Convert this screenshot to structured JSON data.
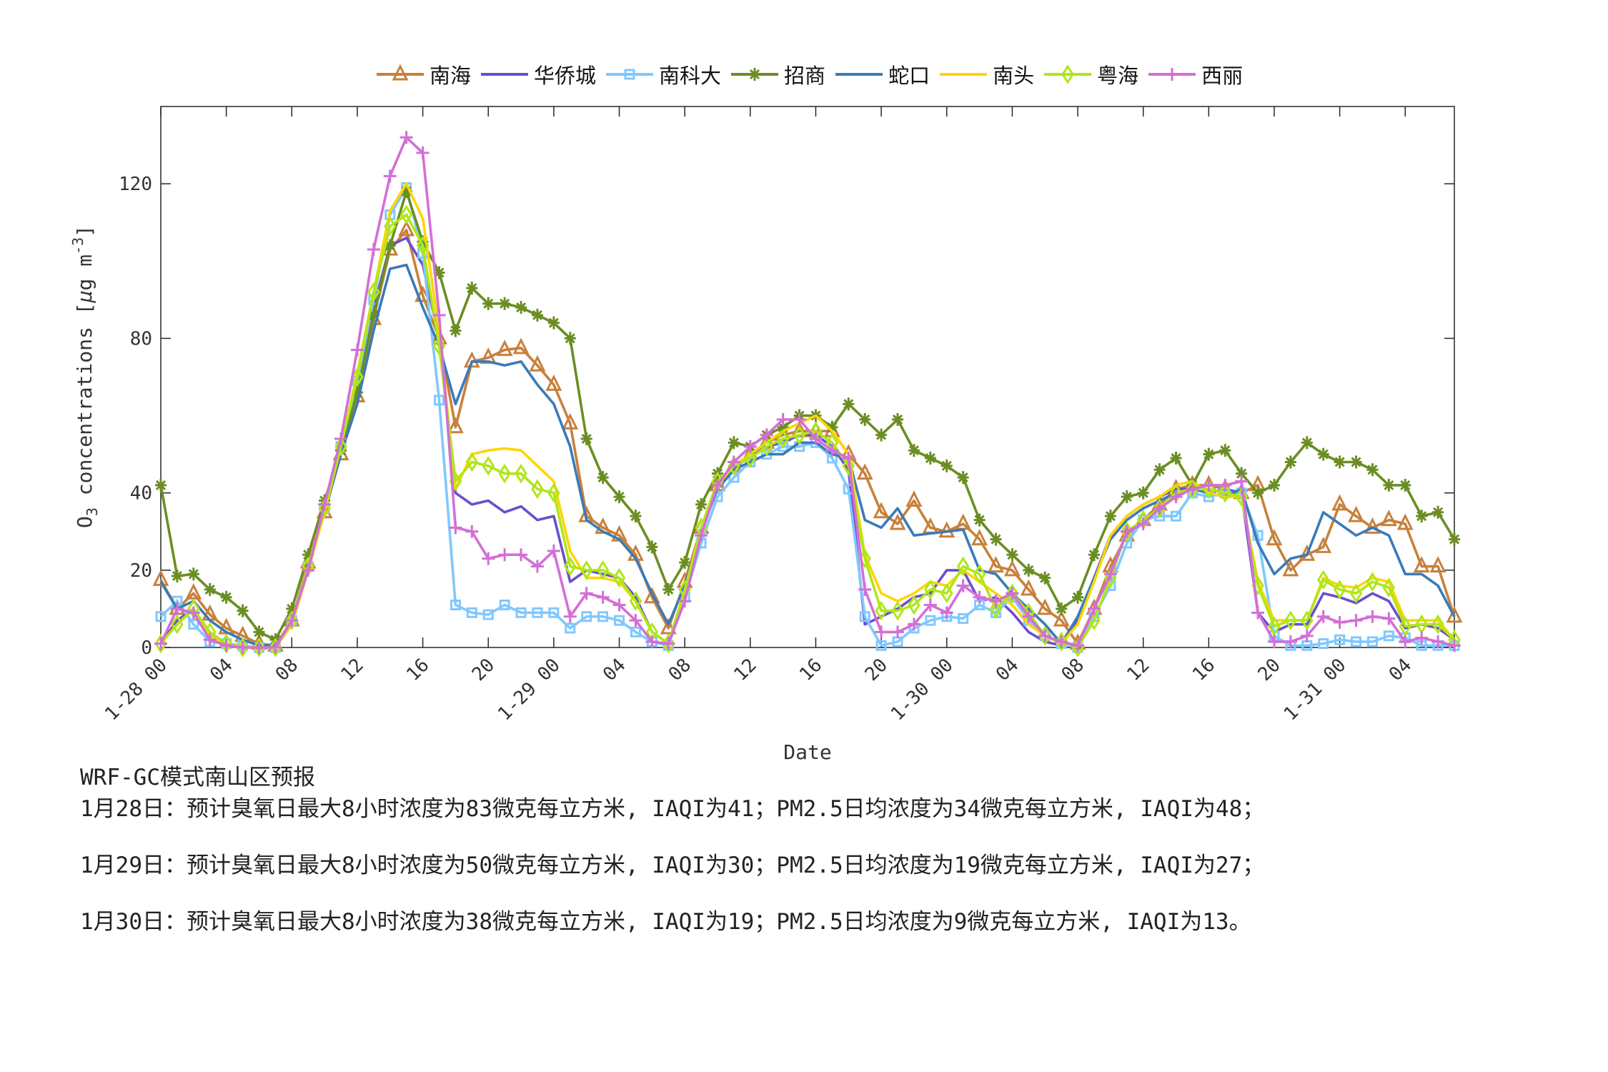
{
  "chart_data": {
    "type": "line",
    "title": "",
    "xlabel": "Date",
    "ylabel": "O3 concentrations [μg m-3]",
    "ylabel_parts": {
      "main": "O",
      "sub": "3",
      "rest": " concentrations [",
      "mu": "μ",
      "unit": "g m",
      "sup": "-3",
      "close": "]"
    },
    "ylim": [
      0,
      140
    ],
    "yticks": [
      0,
      20,
      40,
      80,
      120
    ],
    "x_hours": 80,
    "xtick_every_hours": 4,
    "xtick_labels": [
      "1-28 00",
      "04",
      "08",
      "12",
      "16",
      "20",
      "1-29 00",
      "04",
      "08",
      "12",
      "16",
      "20",
      "1-30 00",
      "04",
      "08",
      "12",
      "16",
      "20",
      "1-31 00",
      "04"
    ],
    "legend_position": "top-center",
    "grid": false,
    "series": [
      {
        "name": "南海",
        "color": "#c8803c",
        "marker": "triangle",
        "values": [
          17.5,
          10,
          14,
          8.5,
          5,
          3,
          1,
          0.5,
          7,
          22,
          35,
          50,
          65,
          85,
          103,
          108,
          91,
          80,
          57,
          74,
          75,
          77,
          77.5,
          73,
          68,
          58,
          34,
          31,
          29,
          24,
          13,
          5,
          17,
          31,
          42,
          47,
          50,
          53,
          55,
          56,
          56,
          56,
          50,
          45,
          35,
          32,
          38,
          31,
          30,
          32,
          28,
          21,
          20,
          15,
          10,
          7,
          1,
          10,
          21,
          29,
          33,
          37,
          41,
          42,
          42,
          41,
          40,
          42,
          28,
          20,
          24,
          26,
          37,
          34,
          31,
          33,
          32,
          21,
          21,
          8
        ]
      },
      {
        "name": "华侨城",
        "color": "#6a4fcf",
        "marker": "none",
        "values": [
          1,
          7,
          10,
          3,
          0.5,
          0,
          0,
          0,
          6,
          20,
          36,
          52,
          68,
          88,
          104,
          106,
          99,
          80,
          40,
          37,
          38,
          35,
          36.5,
          33,
          34,
          17,
          20,
          19,
          18,
          13,
          4,
          1,
          14,
          30,
          42,
          46,
          50,
          52,
          53,
          55,
          55,
          52,
          46,
          6,
          8,
          10,
          13,
          14,
          20,
          20,
          12,
          13,
          9,
          4,
          1.5,
          0.5,
          7,
          18,
          29,
          34,
          37,
          39,
          41,
          41,
          40,
          41,
          40,
          9,
          4,
          6,
          6,
          14,
          13,
          11.5,
          14,
          12,
          5,
          6,
          5,
          2
        ]
      },
      {
        "name": "南科大",
        "color": "#80c8ff",
        "marker": "square",
        "values": [
          8,
          12,
          6,
          1.5,
          1,
          0.5,
          0,
          0,
          7,
          21,
          36,
          52,
          69,
          90,
          112,
          119,
          102,
          64,
          11,
          9,
          8.5,
          11,
          9,
          9,
          9,
          5,
          8,
          8,
          7,
          4,
          1.5,
          0.5,
          13,
          27,
          39,
          44,
          48,
          50,
          52,
          52,
          53,
          49,
          41,
          8,
          0.5,
          1.5,
          5,
          7,
          8,
          7.5,
          11,
          9,
          13,
          7,
          3,
          1,
          0,
          8,
          16,
          27,
          33,
          34,
          34,
          40,
          39,
          40,
          40,
          29,
          3,
          0.5,
          0.5,
          1,
          2,
          1.5,
          1.5,
          3,
          2.5,
          0.5,
          0.5,
          0.5
        ]
      },
      {
        "name": "招商",
        "color": "#6b8e23",
        "marker": "asterisk",
        "values": [
          42,
          18.5,
          19,
          15,
          13,
          9.5,
          4,
          2,
          10,
          24,
          38,
          51,
          66,
          86,
          104,
          118,
          105,
          97,
          82,
          93,
          89,
          89,
          88,
          86,
          84,
          80,
          54,
          44,
          39,
          34,
          26,
          15,
          22,
          37,
          45,
          53,
          52,
          55,
          57,
          60,
          60,
          57,
          63,
          59,
          55,
          59,
          51,
          49,
          47,
          44,
          33,
          28,
          24,
          20,
          18,
          10,
          13,
          24,
          34,
          39,
          40,
          46,
          49,
          42,
          50,
          51,
          45,
          40,
          42,
          48,
          53,
          50,
          48,
          48,
          46,
          42,
          42,
          34,
          35,
          28
        ]
      },
      {
        "name": "蛇口",
        "color": "#3a7bb8",
        "marker": "none",
        "values": [
          17,
          10,
          12,
          7,
          4,
          2,
          0.5,
          0.5,
          6,
          21,
          35,
          50,
          63,
          82,
          98,
          99,
          88,
          78,
          63,
          74,
          74,
          73,
          74,
          68,
          63,
          52,
          33,
          30,
          28,
          23,
          14,
          6,
          16,
          30,
          41,
          46,
          48,
          50,
          50,
          53,
          53,
          50,
          49,
          33,
          31,
          36,
          29,
          29.5,
          30,
          30.5,
          20,
          19,
          14,
          10,
          6,
          1,
          8,
          18,
          28,
          33,
          36,
          38,
          40,
          41,
          40,
          39,
          41,
          27,
          19,
          23,
          24,
          35,
          32,
          29,
          31,
          29,
          19,
          19,
          16,
          8
        ]
      },
      {
        "name": "南头",
        "color": "#ffd500",
        "marker": "none",
        "values": [
          1,
          6,
          10,
          3,
          0.5,
          0,
          0,
          0,
          6,
          20,
          35,
          52,
          71,
          92,
          113,
          120,
          111,
          82,
          41,
          50,
          51,
          51.5,
          51,
          47,
          43,
          25,
          18,
          18,
          17,
          12,
          4,
          1,
          14,
          30,
          42,
          47,
          50,
          53,
          56,
          58,
          60,
          56,
          50,
          24,
          14,
          12,
          14,
          17,
          16,
          20,
          17,
          14,
          11,
          6,
          3,
          1,
          6,
          17,
          29,
          34,
          37,
          39,
          42,
          43,
          40,
          39,
          39,
          17,
          7,
          7,
          7,
          18,
          16,
          15.5,
          18,
          17,
          7,
          7,
          7,
          2
        ]
      },
      {
        "name": "粤海",
        "color": "#b0e619",
        "marker": "diamond",
        "values": [
          1,
          6,
          10,
          4,
          1,
          0,
          0,
          0,
          7,
          21,
          36,
          52,
          70,
          92,
          109,
          112,
          104,
          78,
          43,
          48,
          47,
          45,
          45,
          41,
          40,
          21,
          20,
          20,
          18,
          12,
          4,
          1,
          15,
          31,
          43,
          47,
          49,
          52,
          54,
          55,
          56,
          53,
          47,
          23,
          9.5,
          9.5,
          11,
          15,
          14,
          21,
          19,
          10,
          14,
          9,
          3,
          1.5,
          0,
          7,
          18,
          30,
          33,
          36,
          40,
          41,
          41,
          40,
          39,
          16,
          5.5,
          7,
          7,
          17.5,
          15,
          14,
          17,
          15.5,
          5.5,
          6,
          6,
          2
        ]
      },
      {
        "name": "西丽",
        "color": "#d36fd6",
        "marker": "plus",
        "values": [
          1,
          10,
          9,
          2,
          0.5,
          0,
          0,
          0,
          7,
          20,
          37,
          54,
          77,
          103,
          122,
          132,
          128,
          86,
          31,
          30,
          23,
          24,
          24,
          21,
          25,
          8,
          14,
          13,
          11,
          7,
          1.5,
          1,
          12,
          29,
          42,
          48,
          52,
          55,
          59,
          59,
          54,
          51,
          49,
          15,
          4,
          4,
          6,
          11,
          9,
          16,
          13,
          12,
          14,
          8,
          3,
          1.5,
          0.5,
          10,
          19,
          30,
          32,
          36,
          39,
          41,
          42,
          42,
          43,
          9,
          1.5,
          1.5,
          3,
          8,
          6.5,
          7,
          8,
          7.5,
          1.5,
          2.5,
          1.5,
          0.5
        ]
      }
    ]
  },
  "notes": {
    "title": "WRF-GC模式南山区预报",
    "lines": [
      "1月28日：预计臭氧日最大8小时浓度为83微克每立方米, IAQI为41；PM2.5日均浓度为34微克每立方米, IAQI为48；",
      "1月29日：预计臭氧日最大8小时浓度为50微克每立方米, IAQI为30；PM2.5日均浓度为19微克每立方米, IAQI为27；",
      "1月30日：预计臭氧日最大8小时浓度为38微克每立方米, IAQI为19；PM2.5日均浓度为9微克每立方米, IAQI为13。"
    ]
  }
}
